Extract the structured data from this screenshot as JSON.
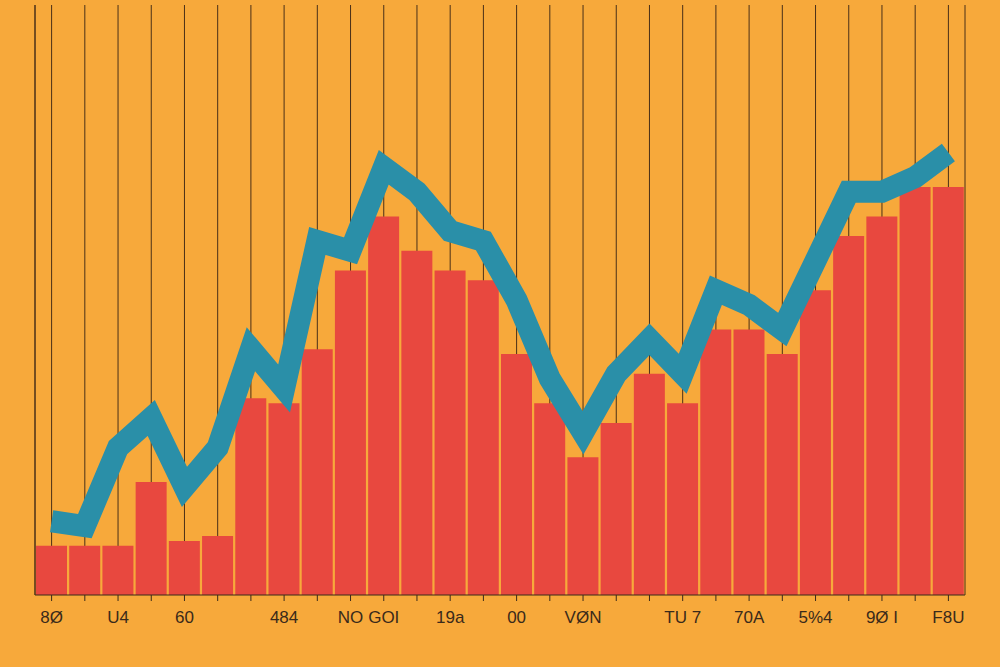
{
  "chart_data": {
    "type": "bar",
    "categories": [
      "8Ø",
      null,
      "U4",
      null,
      "60",
      null,
      null,
      "484",
      null,
      "NO",
      "GOI",
      null,
      "19a",
      null,
      "00",
      null,
      "VØN",
      null,
      null,
      "TU 7",
      null,
      "70A",
      null,
      "5%4",
      null,
      "9Ø I",
      null,
      "F8U"
    ],
    "series": [
      {
        "type": "bar",
        "color": "#e8483f",
        "values": [
          10,
          10,
          10,
          23,
          11,
          12,
          40,
          39,
          50,
          66,
          77,
          70,
          66,
          64,
          49,
          39,
          28,
          35,
          45,
          39,
          54,
          54,
          49,
          62,
          73,
          77,
          83,
          83
        ]
      },
      {
        "type": "line",
        "color": "#2a8fa8",
        "values": [
          15,
          14,
          30,
          36,
          22,
          30,
          50,
          42,
          72,
          70,
          87,
          82,
          74,
          72,
          60,
          44,
          33,
          45,
          52,
          45,
          62,
          59,
          54,
          68,
          82,
          82,
          85,
          90
        ]
      }
    ],
    "ylim": [
      0,
      120
    ],
    "grid": true,
    "tick_labels": "x"
  }
}
